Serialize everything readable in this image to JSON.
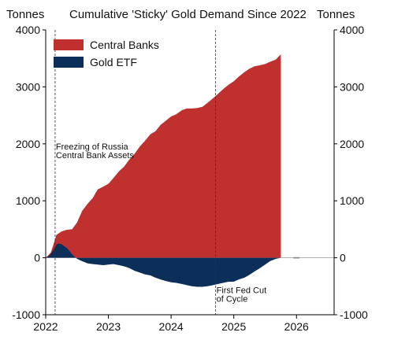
{
  "chart_data": {
    "type": "area",
    "title": "Cumulative 'Sticky' Gold Demand Since 2022",
    "ylabel_left": "Tonnes",
    "ylabel_right": "Tonnes",
    "ylim": [
      -1000,
      4000
    ],
    "y_ticks": [
      "4000",
      "3000",
      "2000",
      "1000",
      "0",
      "-1000"
    ],
    "y_tick_values": [
      4000,
      3000,
      2000,
      1000,
      0,
      -1000
    ],
    "xlim": [
      2022.0,
      2026.6
    ],
    "x_ticks": [
      "2022",
      "2023",
      "2024",
      "2025",
      "2026"
    ],
    "x_tick_values": [
      2022,
      2023,
      2024,
      2025,
      2026
    ],
    "legend_position": "top-left",
    "grid": false,
    "series": [
      {
        "name": "Central Banks",
        "color": "#c0302f",
        "x": [
          2022.0,
          2022.08,
          2022.12,
          2022.17,
          2022.25,
          2022.33,
          2022.42,
          2022.5,
          2022.58,
          2022.67,
          2022.75,
          2022.83,
          2022.92,
          2023.0,
          2023.08,
          2023.17,
          2023.25,
          2023.33,
          2023.42,
          2023.5,
          2023.58,
          2023.67,
          2023.75,
          2023.83,
          2023.92,
          2024.0,
          2024.08,
          2024.17,
          2024.25,
          2024.33,
          2024.42,
          2024.5,
          2024.58,
          2024.67,
          2024.75,
          2024.83,
          2024.92,
          2025.0,
          2025.08,
          2025.17,
          2025.25,
          2025.33,
          2025.42,
          2025.5,
          2025.58,
          2025.67,
          2025.75
        ],
        "values": [
          0,
          90,
          220,
          400,
          460,
          490,
          500,
          620,
          820,
          950,
          1050,
          1200,
          1250,
          1300,
          1400,
          1520,
          1600,
          1720,
          1830,
          1950,
          2050,
          2170,
          2220,
          2330,
          2410,
          2480,
          2520,
          2590,
          2620,
          2620,
          2630,
          2650,
          2720,
          2800,
          2880,
          2960,
          3040,
          3100,
          3180,
          3260,
          3320,
          3360,
          3380,
          3400,
          3440,
          3480,
          3570
        ]
      },
      {
        "name": "Gold ETF",
        "color": "#0c2f5a",
        "x": [
          2022.0,
          2022.06,
          2022.12,
          2022.17,
          2022.21,
          2022.25,
          2022.3,
          2022.33,
          2022.38,
          2022.42,
          2022.5,
          2022.58,
          2022.67,
          2022.75,
          2022.83,
          2022.92,
          2023.0,
          2023.08,
          2023.17,
          2023.25,
          2023.33,
          2023.42,
          2023.5,
          2023.58,
          2023.67,
          2023.75,
          2023.83,
          2023.92,
          2024.0,
          2024.08,
          2024.17,
          2024.25,
          2024.33,
          2024.42,
          2024.5,
          2024.58,
          2024.67,
          2024.75,
          2024.83,
          2024.92,
          2025.0,
          2025.08,
          2025.17,
          2025.25,
          2025.33,
          2025.42,
          2025.5,
          2025.58,
          2025.67,
          2025.75
        ],
        "values": [
          0,
          40,
          130,
          230,
          250,
          240,
          200,
          180,
          120,
          60,
          -20,
          -60,
          -100,
          -110,
          -120,
          -130,
          -120,
          -110,
          -130,
          -150,
          -180,
          -230,
          -260,
          -290,
          -310,
          -350,
          -380,
          -410,
          -430,
          -440,
          -460,
          -480,
          -500,
          -510,
          -510,
          -500,
          -480,
          -460,
          -440,
          -420,
          -420,
          -380,
          -350,
          -300,
          -240,
          -180,
          -120,
          -60,
          -20,
          0
        ]
      }
    ],
    "annotations": [
      {
        "x": 2022.15,
        "label_lines": [
          "Freezing of Russia",
          "Central Bank Assets"
        ],
        "y_text": [
          1900,
          1750
        ]
      },
      {
        "x": 2024.71,
        "label_lines": [
          "First Fed Cut",
          "of Cycle"
        ],
        "y_text": [
          -620,
          -770
        ]
      }
    ],
    "tail_marker": {
      "x": [
        2025.95,
        2026.05
      ],
      "y": [
        0,
        0
      ],
      "color": "#555555"
    }
  }
}
